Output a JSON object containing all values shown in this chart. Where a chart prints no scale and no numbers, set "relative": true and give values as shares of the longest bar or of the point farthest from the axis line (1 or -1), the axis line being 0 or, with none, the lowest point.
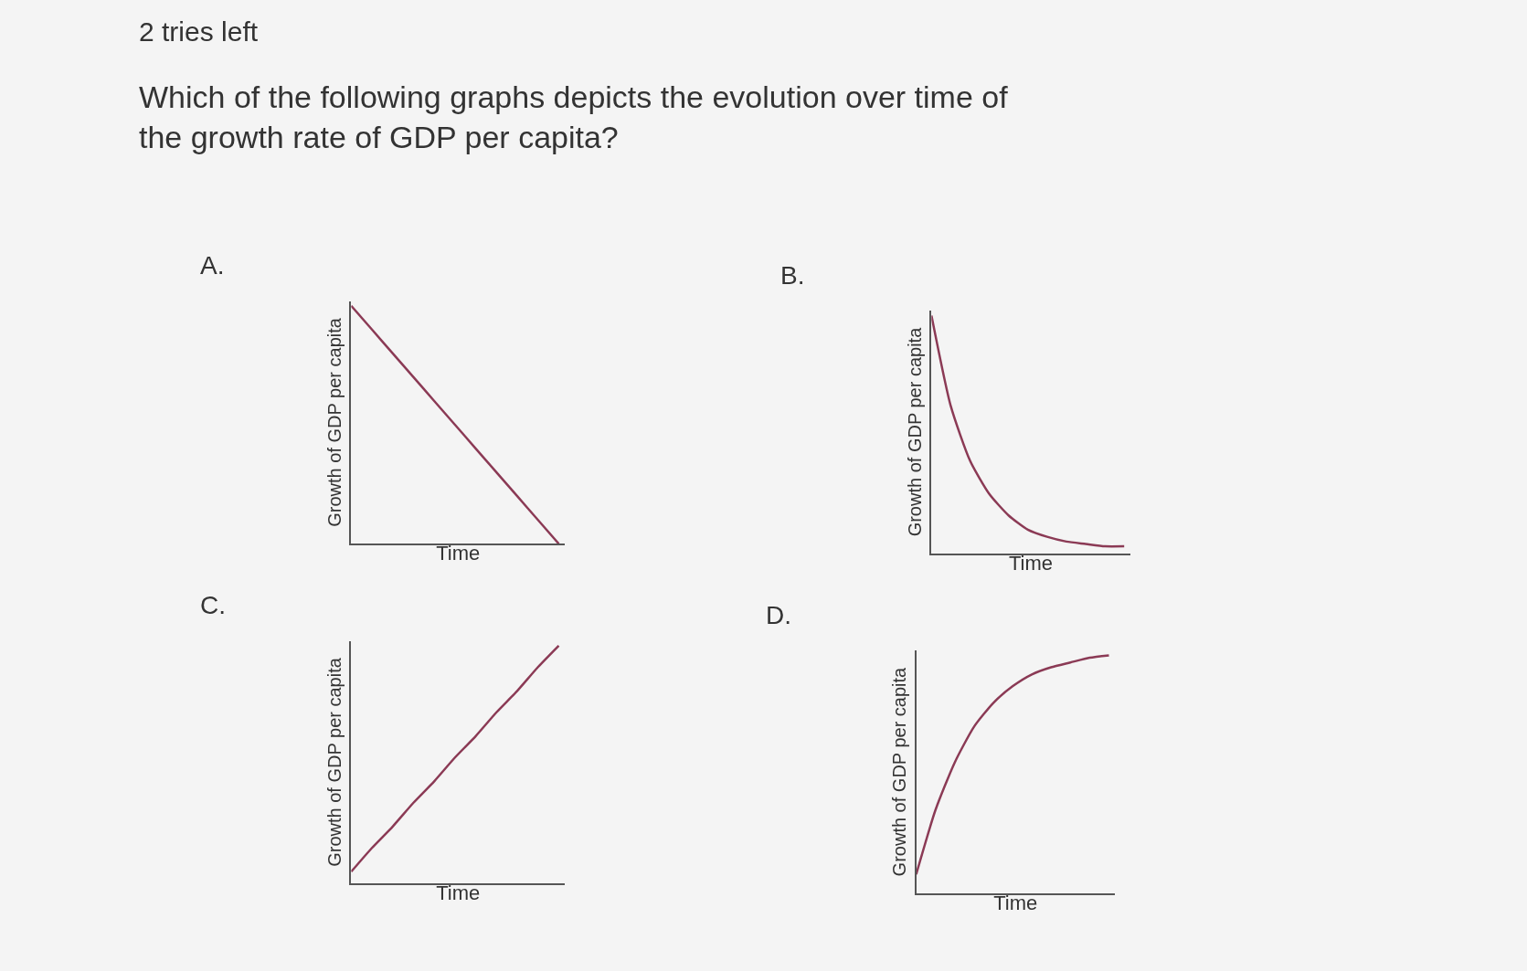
{
  "chart_data": [
    {
      "type": "line",
      "title": "A.",
      "xlabel": "Time",
      "ylabel": "Growth of GDP per capita",
      "relative": true,
      "annotations": [
        "2 tries left",
        "Which of the following graphs depicts the evolution over time of the growth rate of GDP per capita?"
      ],
      "categories": [
        null,
        null,
        null,
        null,
        null,
        null,
        null,
        null,
        null,
        null,
        null
      ],
      "series": [
        {
          "color": "#8b3a55",
          "values": [
            1,
            0.9,
            0.8,
            0.7,
            0.6,
            0.5,
            0.4,
            0.3,
            0.2,
            0.1,
            0
          ]
        }
      ]
    },
    {
      "type": "line",
      "title": "B.",
      "xlabel": "Time",
      "ylabel": "Growth of GDP per capita",
      "relative": true,
      "categories": [
        null,
        null,
        null,
        null,
        null,
        null,
        null,
        null,
        null,
        null,
        null
      ],
      "series": [
        {
          "color": "#8b3a55",
          "values": [
            1,
            0.62,
            0.39,
            0.25,
            0.16,
            0.1,
            0.07,
            0.05,
            0.04,
            0.03,
            0.03
          ]
        }
      ]
    },
    {
      "type": "line",
      "title": "C.",
      "xlabel": "Time",
      "ylabel": "Growth of GDP per capita",
      "relative": true,
      "categories": [
        null,
        null,
        null,
        null,
        null,
        null,
        null,
        null,
        null,
        null,
        null
      ],
      "series": [
        {
          "color": "#8b3a55",
          "values": [
            0.05,
            0.15,
            0.24,
            0.34,
            0.43,
            0.53,
            0.62,
            0.72,
            0.81,
            0.91,
            1
          ]
        }
      ]
    },
    {
      "type": "line",
      "title": "D.",
      "xlabel": "Time",
      "ylabel": "Growth of GDP per capita",
      "relative": true,
      "categories": [
        null,
        null,
        null,
        null,
        null,
        null,
        null,
        null,
        null,
        null,
        null
      ],
      "series": [
        {
          "color": "#8b3a55",
          "values": [
            0.08,
            0.35,
            0.55,
            0.7,
            0.8,
            0.87,
            0.92,
            0.95,
            0.97,
            0.99,
            1
          ]
        }
      ]
    }
  ]
}
